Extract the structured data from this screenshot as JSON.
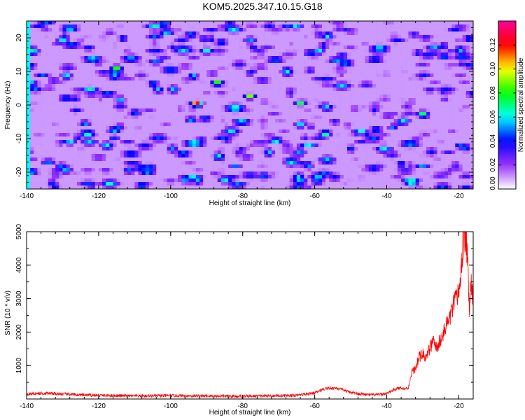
{
  "title": "KOM5.2025.347.10.15.G18",
  "chart_data": [
    {
      "type": "heatmap",
      "xlabel": "Height of straight line (km)",
      "ylabel": "Frequency (Hz)",
      "xlim": [
        -140,
        -16
      ],
      "ylim": [
        -25,
        25
      ],
      "xticks": [
        -140,
        -120,
        -100,
        -80,
        -60,
        -40,
        -20
      ],
      "yticks": [
        -20,
        -10,
        0,
        10,
        20
      ],
      "colorbar": {
        "label": "Normalized spectral amplitude",
        "range": [
          0,
          0.14
        ],
        "ticks": [
          "0.00",
          "0.02",
          "0.04",
          "0.06",
          "0.08",
          "0.10",
          "0.12"
        ],
        "colors": [
          "#ffffff",
          "#9933ff",
          "#0000ff",
          "#00ffff",
          "#00ff00",
          "#ffff00",
          "#ff0000",
          "#ff0099"
        ]
      },
      "peaks": [
        {
          "x": -92.8,
          "y": 0.3,
          "value": 0.14
        },
        {
          "x": -78,
          "y": 2.5,
          "value": 0.1
        },
        {
          "x": -87,
          "y": 6.5,
          "value": 0.1
        },
        {
          "x": -57,
          "y": -8.5,
          "value": 0.09
        },
        {
          "x": -115,
          "y": 11,
          "value": 0.09
        },
        {
          "x": -64,
          "y": 0.5,
          "value": 0.08
        },
        {
          "x": -30,
          "y": -2.5,
          "value": 0.08
        },
        {
          "x": -47,
          "y": -8,
          "value": 0.07
        },
        {
          "x": -108,
          "y": -24,
          "value": 0.07
        },
        {
          "x": -130,
          "y": 19.5,
          "value": 0.07
        },
        {
          "x": -64,
          "y": -6,
          "value": 0.07
        }
      ]
    },
    {
      "type": "line",
      "xlabel": "Height of straight line (km)",
      "ylabel": "SNR (10 * v/v)",
      "xlim": [
        -140,
        -16
      ],
      "ylim": [
        0,
        5000
      ],
      "xticks": [
        -140,
        -120,
        -100,
        -80,
        -60,
        -40,
        -20
      ],
      "yticks": [
        1000,
        2000,
        3000,
        4000,
        5000
      ],
      "line_color": "#ff0000",
      "series": [
        {
          "name": "SNR",
          "x": [
            -140,
            -135,
            -130,
            -125,
            -120,
            -110,
            -100,
            -90,
            -80,
            -70,
            -65,
            -60,
            -57,
            -54,
            -51,
            -48,
            -45,
            -42,
            -40,
            -38,
            -36,
            -35,
            -34,
            -33,
            -32,
            -31,
            -30,
            -29,
            -28,
            -27,
            -26,
            -25,
            -24,
            -23,
            -22,
            -21,
            -20,
            -19.5,
            -19,
            -18.5,
            -18,
            -17.5,
            -17,
            -16.5,
            -16
          ],
          "y": [
            150,
            170,
            150,
            120,
            110,
            90,
            100,
            90,
            80,
            100,
            110,
            180,
            320,
            330,
            230,
            160,
            120,
            130,
            160,
            280,
            340,
            300,
            330,
            820,
            900,
            1250,
            1350,
            1200,
            1550,
            1700,
            1500,
            1800,
            2050,
            2300,
            2600,
            2900,
            3200,
            3600,
            4400,
            5000,
            4800,
            3900,
            2800,
            3500,
            3000
          ]
        }
      ]
    }
  ]
}
